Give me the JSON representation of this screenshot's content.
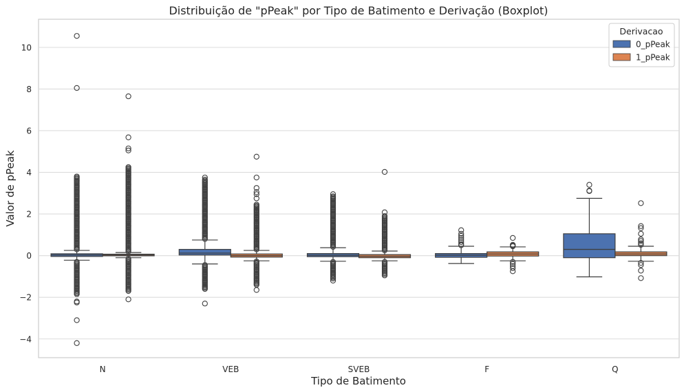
{
  "chart_data": {
    "type": "boxplot",
    "title": "Distribuição de \"pPeak\" por Tipo de Batimento e Derivação (Boxplot)",
    "xlabel": "Tipo de Batimento",
    "ylabel": "Valor de pPeak",
    "categories": [
      "N",
      "VEB",
      "SVEB",
      "F",
      "Q"
    ],
    "ylim": [
      -4.9,
      11.35
    ],
    "yticks": [
      -4,
      -2,
      0,
      2,
      4,
      6,
      8,
      10
    ],
    "grid": true,
    "legend": {
      "title": "Derivacao",
      "placement": "top-right"
    },
    "series": [
      {
        "name": "0_pPeak",
        "color": "#4c72b0",
        "boxes": [
          {
            "q1": -0.04,
            "median": 0.03,
            "q3": 0.09,
            "whisker_low": -0.22,
            "whisker_high": 0.25,
            "outliers_high": [
              10.55,
              8.05,
              3.8
            ],
            "outliers_low": [
              -2.2,
              -2.25,
              -3.1,
              -4.2
            ],
            "dense_high": [
              0.3,
              3.75
            ],
            "dense_low": [
              -0.3,
              -1.85
            ]
          },
          {
            "q1": 0.03,
            "median": 0.12,
            "q3": 0.3,
            "whisker_low": -0.4,
            "whisker_high": 0.75,
            "outliers_high": [
              3.75
            ],
            "outliers_low": [
              -2.3
            ],
            "dense_high": [
              0.8,
              3.65
            ],
            "dense_low": [
              -0.45,
              -1.6
            ]
          },
          {
            "q1": -0.05,
            "median": 0.02,
            "q3": 0.1,
            "whisker_low": -0.27,
            "whisker_high": 0.38,
            "outliers_high": [
              2.95
            ],
            "outliers_low": [
              -1.2
            ],
            "dense_high": [
              0.42,
              2.85
            ],
            "dense_low": [
              -0.3,
              -1.1
            ]
          },
          {
            "q1": -0.08,
            "median": 0.02,
            "q3": 0.1,
            "whisker_low": -0.38,
            "whisker_high": 0.45,
            "outliers_high": [
              0.5,
              0.55,
              0.65,
              0.75,
              0.85,
              0.95,
              1.05,
              1.22
            ],
            "outliers_low": [],
            "dense_high": [],
            "dense_low": []
          },
          {
            "q1": -0.1,
            "median": 0.3,
            "q3": 1.05,
            "whisker_low": -1.02,
            "whisker_high": 2.75,
            "outliers_high": [
              3.1,
              3.12,
              3.4
            ],
            "outliers_low": [],
            "dense_high": [],
            "dense_low": []
          }
        ]
      },
      {
        "name": "1_pPeak",
        "color": "#dd8452",
        "boxes": [
          {
            "q1": -0.01,
            "median": 0.03,
            "q3": 0.07,
            "whisker_low": -0.1,
            "whisker_high": 0.15,
            "outliers_high": [
              7.65,
              5.68,
              5.15,
              5.05
            ],
            "outliers_low": [
              -2.1
            ],
            "dense_high": [
              0.2,
              4.25
            ],
            "dense_low": [
              -0.15,
              -1.7
            ]
          },
          {
            "q1": -0.07,
            "median": 0.0,
            "q3": 0.08,
            "whisker_low": -0.25,
            "whisker_high": 0.25,
            "outliers_high": [
              4.75,
              3.75,
              3.25,
              3.05,
              2.95,
              2.75
            ],
            "outliers_low": [
              -1.65
            ],
            "dense_high": [
              0.3,
              2.45
            ],
            "dense_low": [
              -0.28,
              -1.4
            ]
          },
          {
            "q1": -0.1,
            "median": -0.03,
            "q3": 0.05,
            "whisker_low": -0.25,
            "whisker_high": 0.22,
            "outliers_high": [
              4.02,
              2.08
            ],
            "outliers_low": [],
            "dense_high": [
              0.25,
              1.9
            ],
            "dense_low": [
              -0.3,
              -0.95
            ]
          },
          {
            "q1": -0.02,
            "median": 0.08,
            "q3": 0.18,
            "whisker_low": -0.25,
            "whisker_high": 0.42,
            "outliers_high": [
              0.85,
              0.52,
              0.48,
              0.45
            ],
            "outliers_low": [
              -0.3,
              -0.4,
              -0.5,
              -0.6,
              -0.75
            ],
            "dense_high": [],
            "dense_low": []
          },
          {
            "q1": 0.0,
            "median": 0.08,
            "q3": 0.18,
            "whisker_low": -0.27,
            "whisker_high": 0.45,
            "outliers_high": [
              2.52,
              1.42,
              1.32,
              1.05,
              0.78,
              0.7,
              0.6,
              0.52
            ],
            "outliers_low": [
              -0.35,
              -0.45,
              -0.72,
              -1.08
            ],
            "dense_high": [],
            "dense_low": []
          }
        ]
      }
    ]
  }
}
